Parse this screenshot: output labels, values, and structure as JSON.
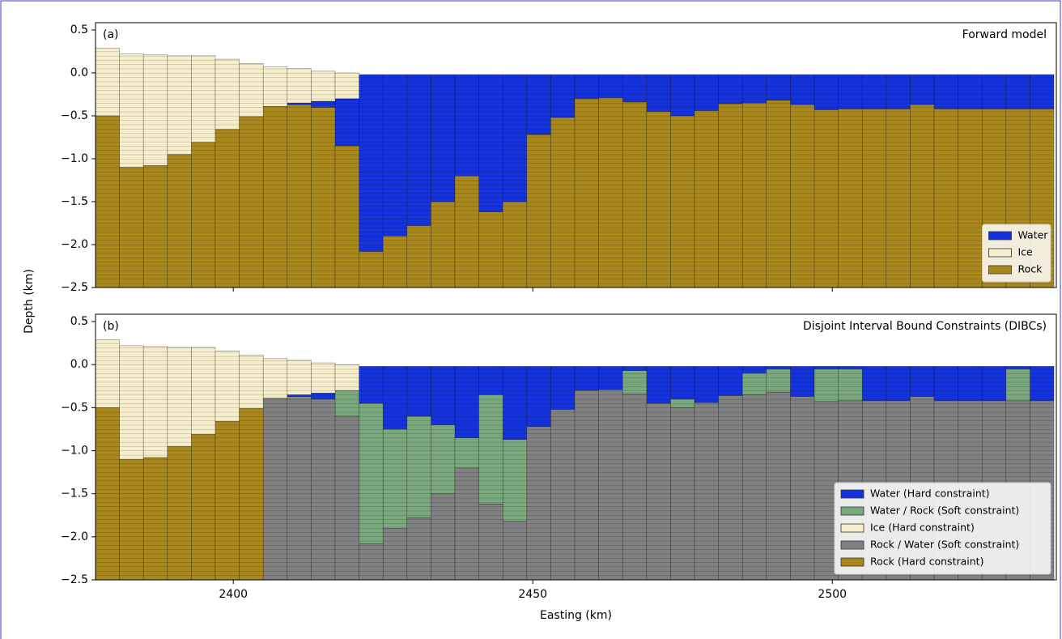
{
  "ylabel": "Depth (km)",
  "chart_data": [
    {
      "type": "section",
      "panel_label": "(a)",
      "title": "Forward model",
      "legend": "lower right",
      "xlim": [
        2377,
        2537.4
      ],
      "xticks": [
        2400,
        2450,
        2500
      ],
      "ylim": [
        -2.5,
        0.585
      ],
      "yticks": [
        0.5,
        {
          "value": 0.0,
          "label": "0.0"
        },
        {
          "value": -0.5,
          "label": "−0.5"
        },
        {
          "value": -1.0,
          "label": "−1.0"
        },
        {
          "value": -1.5,
          "label": "−1.5"
        },
        {
          "value": -2.0,
          "label": "−2.0"
        },
        {
          "value": -2.5,
          "label": "−2.5"
        }
      ],
      "x": [
        2379,
        2383,
        2387,
        2391,
        2395,
        2399,
        2403,
        2407,
        2411,
        2415,
        2419,
        2423,
        2427,
        2431,
        2435,
        2439,
        2443,
        2447,
        2451,
        2455,
        2459,
        2463,
        2467,
        2471,
        2475,
        2479,
        2483,
        2487,
        2491,
        2495,
        2499,
        2503,
        2507,
        2511,
        2515,
        2519,
        2523,
        2527,
        2531,
        2535
      ],
      "series": [
        {
          "name": "Water",
          "color": "#1533dd",
          "top": [
            null,
            null,
            null,
            null,
            null,
            null,
            null,
            null,
            -0.35,
            -0.33,
            -0.3,
            -0.02,
            -0.02,
            -0.02,
            -0.02,
            -0.02,
            -0.02,
            -0.02,
            -0.02,
            -0.02,
            -0.02,
            -0.02,
            -0.02,
            -0.02,
            -0.02,
            -0.02,
            -0.02,
            -0.02,
            -0.02,
            -0.02,
            -0.02,
            -0.02,
            -0.02,
            -0.02,
            -0.02,
            -0.02,
            -0.02,
            -0.02,
            -0.02,
            -0.02
          ],
          "bottom": [
            null,
            null,
            null,
            null,
            null,
            null,
            null,
            null,
            -0.37,
            -0.4,
            -0.85,
            -2.08,
            -1.9,
            -1.78,
            -1.5,
            -1.2,
            -1.62,
            -1.5,
            -0.72,
            -0.52,
            -0.3,
            -0.29,
            -0.34,
            -0.45,
            -0.5,
            -0.44,
            -0.36,
            -0.35,
            -0.32,
            -0.37,
            -0.43,
            -0.42,
            -0.42,
            -0.42,
            -0.37,
            -0.42,
            -0.42,
            -0.42,
            -0.42,
            -0.42
          ]
        },
        {
          "name": "Ice",
          "color": "#f6eecb",
          "top": [
            0.29,
            0.22,
            0.21,
            0.2,
            0.2,
            0.16,
            0.11,
            0.07,
            0.05,
            0.02,
            0.0,
            null,
            null,
            null,
            null,
            null,
            null,
            null,
            null,
            null,
            null,
            null,
            null,
            null,
            null,
            null,
            null,
            null,
            null,
            null,
            null,
            null,
            null,
            null,
            null,
            null,
            null,
            null,
            null,
            null
          ],
          "bottom": [
            -0.5,
            -1.1,
            -1.08,
            -0.95,
            -0.81,
            -0.66,
            -0.51,
            -0.39,
            -0.35,
            -0.33,
            -0.3,
            null,
            null,
            null,
            null,
            null,
            null,
            null,
            null,
            null,
            null,
            null,
            null,
            null,
            null,
            null,
            null,
            null,
            null,
            null,
            null,
            null,
            null,
            null,
            null,
            null,
            null,
            null,
            null,
            null
          ]
        },
        {
          "name": "Rock",
          "color": "#a8871c",
          "top": [
            -0.5,
            -1.1,
            -1.08,
            -0.95,
            -0.81,
            -0.66,
            -0.51,
            -0.39,
            -0.37,
            -0.4,
            -0.85,
            -2.08,
            -1.9,
            -1.78,
            -1.5,
            -1.2,
            -1.62,
            -1.5,
            -0.72,
            -0.52,
            -0.3,
            -0.29,
            -0.34,
            -0.45,
            -0.5,
            -0.44,
            -0.36,
            -0.35,
            -0.32,
            -0.37,
            -0.43,
            -0.42,
            -0.42,
            -0.42,
            -0.37,
            -0.42,
            -0.42,
            -0.42,
            -0.42,
            -0.42
          ]
        }
      ]
    },
    {
      "type": "section",
      "panel_label": "(b)",
      "title": "Disjoint Interval Bound Constraints (DIBCs)",
      "legend": "lower right",
      "xlabel": "Easting (km)",
      "xlim": [
        2377,
        2537.4
      ],
      "xticks": [
        2400,
        2450,
        2500
      ],
      "ylim": [
        -2.5,
        0.585
      ],
      "yticks": [
        0.5,
        {
          "value": 0.0,
          "label": "0.0"
        },
        {
          "value": -0.5,
          "label": "−0.5"
        },
        {
          "value": -1.0,
          "label": "−1.0"
        },
        {
          "value": -1.5,
          "label": "−1.5"
        },
        {
          "value": -2.0,
          "label": "−2.0"
        },
        {
          "value": -2.5,
          "label": "−2.5"
        }
      ],
      "x": [
        2379,
        2383,
        2387,
        2391,
        2395,
        2399,
        2403,
        2407,
        2411,
        2415,
        2419,
        2423,
        2427,
        2431,
        2435,
        2439,
        2443,
        2447,
        2451,
        2455,
        2459,
        2463,
        2467,
        2471,
        2475,
        2479,
        2483,
        2487,
        2491,
        2495,
        2499,
        2503,
        2507,
        2511,
        2515,
        2519,
        2523,
        2527,
        2531,
        2535
      ],
      "series": [
        {
          "name": "Water (Hard constraint)",
          "color": "#1533dd",
          "top": [
            null,
            null,
            null,
            null,
            null,
            null,
            null,
            null,
            -0.35,
            -0.33,
            null,
            -0.02,
            -0.02,
            -0.02,
            -0.02,
            -0.02,
            -0.02,
            -0.02,
            -0.02,
            -0.02,
            -0.02,
            -0.02,
            -0.02,
            -0.02,
            -0.02,
            -0.02,
            -0.02,
            -0.02,
            -0.02,
            -0.02,
            -0.02,
            -0.02,
            -0.02,
            -0.02,
            -0.02,
            -0.02,
            -0.02,
            -0.02,
            -0.02,
            -0.02
          ],
          "bottom": [
            null,
            null,
            null,
            null,
            null,
            null,
            null,
            null,
            -0.37,
            -0.4,
            null,
            -0.45,
            -0.75,
            -0.6,
            -0.7,
            -0.85,
            -0.35,
            -0.87,
            -0.72,
            -0.52,
            -0.3,
            -0.29,
            -0.07,
            -0.45,
            -0.4,
            -0.44,
            -0.36,
            -0.1,
            -0.05,
            -0.37,
            -0.05,
            -0.05,
            -0.42,
            -0.42,
            -0.37,
            -0.42,
            -0.42,
            -0.42,
            -0.05,
            -0.42
          ]
        },
        {
          "name": "Water / Rock (Soft constraint)",
          "color": "#79a87c",
          "top": [
            null,
            null,
            null,
            null,
            null,
            null,
            null,
            null,
            null,
            null,
            -0.3,
            -0.45,
            -0.75,
            -0.6,
            -0.7,
            -0.85,
            -0.35,
            -0.87,
            null,
            null,
            null,
            null,
            -0.07,
            null,
            -0.4,
            null,
            null,
            -0.1,
            -0.05,
            null,
            -0.05,
            -0.05,
            null,
            null,
            null,
            null,
            null,
            null,
            -0.05,
            null
          ],
          "bottom": [
            null,
            null,
            null,
            null,
            null,
            null,
            null,
            null,
            null,
            null,
            -0.6,
            -2.08,
            -1.9,
            -1.78,
            -1.5,
            -1.2,
            -1.62,
            -1.82,
            null,
            null,
            null,
            null,
            -0.34,
            null,
            -0.5,
            null,
            null,
            -0.35,
            -0.32,
            null,
            -0.43,
            -0.42,
            null,
            null,
            null,
            null,
            null,
            null,
            -0.42,
            null
          ]
        },
        {
          "name": "Ice (Hard constraint)",
          "color": "#f6eecb",
          "top": [
            0.29,
            0.22,
            0.21,
            0.2,
            0.2,
            0.16,
            0.11,
            0.07,
            0.05,
            0.02,
            0.0,
            null,
            null,
            null,
            null,
            null,
            null,
            null,
            null,
            null,
            null,
            null,
            null,
            null,
            null,
            null,
            null,
            null,
            null,
            null,
            null,
            null,
            null,
            null,
            null,
            null,
            null,
            null,
            null,
            null
          ],
          "bottom": [
            -0.5,
            -1.1,
            -1.08,
            -0.95,
            -0.81,
            -0.66,
            -0.51,
            -0.39,
            -0.35,
            -0.33,
            -0.3,
            null,
            null,
            null,
            null,
            null,
            null,
            null,
            null,
            null,
            null,
            null,
            null,
            null,
            null,
            null,
            null,
            null,
            null,
            null,
            null,
            null,
            null,
            null,
            null,
            null,
            null,
            null,
            null,
            null
          ]
        },
        {
          "name": "Rock / Water (Soft constraint)",
          "color": "#808080",
          "top": [
            null,
            null,
            null,
            null,
            null,
            null,
            null,
            -0.39,
            -0.37,
            -0.4,
            -0.6,
            -2.08,
            -1.9,
            -1.78,
            -1.5,
            -1.2,
            -1.62,
            -1.82,
            -0.72,
            -0.52,
            -0.3,
            -0.29,
            -0.34,
            -0.45,
            -0.5,
            -0.44,
            -0.36,
            -0.35,
            -0.32,
            -0.37,
            -0.43,
            -0.42,
            -0.42,
            -0.42,
            -0.37,
            -0.42,
            -0.42,
            -0.42,
            -0.42,
            -0.42
          ]
        },
        {
          "name": "Rock (Hard constraint)",
          "color": "#a8871c",
          "top": [
            -0.5,
            -1.1,
            -1.08,
            -0.95,
            -0.81,
            -0.66,
            -0.51,
            null,
            null,
            null,
            null,
            null,
            null,
            null,
            null,
            null,
            null,
            null,
            null,
            null,
            null,
            null,
            null,
            null,
            null,
            null,
            null,
            null,
            null,
            null,
            null,
            null,
            null,
            null,
            null,
            null,
            null,
            null,
            null,
            null
          ]
        }
      ]
    }
  ]
}
